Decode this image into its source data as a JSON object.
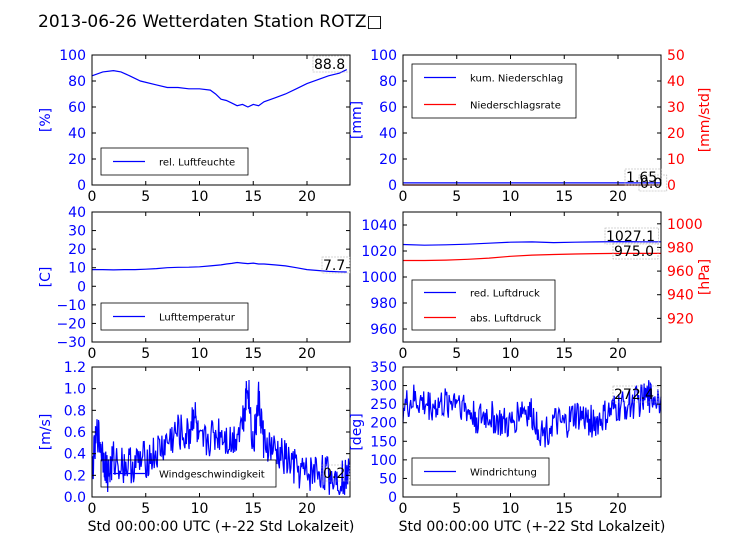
{
  "title": "2013-06-26 Wetterdaten Station ROTZ□",
  "colors": {
    "left": "#0000ff",
    "right": "#ff0000",
    "axis": "#000000"
  },
  "chart_data": [
    {
      "type": "line",
      "xlabel": "",
      "ylabel": "[%]",
      "xlim": [
        0,
        24
      ],
      "ylim": [
        0,
        100
      ],
      "xticks": [
        "0",
        "5",
        "10",
        "15",
        "20"
      ],
      "yticks": [
        "0",
        "20",
        "40",
        "60",
        "80",
        "100"
      ],
      "legend": {
        "placement": "lower-left",
        "entries": [
          "rel. Luftfeuchte"
        ]
      },
      "annotations": [
        "88.8"
      ],
      "series": [
        {
          "name": "rel. Luftfeuchte",
          "axis": "left",
          "color": "#0000ff",
          "x": [
            0,
            1,
            2,
            2.7,
            3.5,
            4.5,
            6,
            7,
            8,
            9,
            10,
            11,
            11.5,
            12,
            12.5,
            13,
            13.5,
            14,
            14.5,
            15,
            15.5,
            16,
            17,
            18,
            19,
            20,
            21,
            22,
            23,
            23.7
          ],
          "y": [
            84,
            87,
            88,
            87,
            84,
            80,
            77,
            75,
            75,
            74,
            74,
            73,
            70,
            66,
            65,
            63,
            61,
            62,
            60,
            62,
            61,
            64,
            67,
            70,
            74,
            78,
            81,
            84,
            86,
            88.8
          ]
        }
      ]
    },
    {
      "type": "line",
      "xlabel": "",
      "ylabel": "[mm]",
      "ylabel_right": "[mm/std]",
      "xlim": [
        0,
        24
      ],
      "ylim": [
        0,
        100
      ],
      "ylim_right": [
        0,
        50
      ],
      "xticks": [
        "0",
        "5",
        "10",
        "15",
        "20"
      ],
      "yticks": [
        "0",
        "20",
        "40",
        "60",
        "80",
        "100"
      ],
      "yticks_right": [
        "0",
        "10",
        "20",
        "30",
        "40",
        "50"
      ],
      "legend": {
        "placement": "upper-left",
        "entries": [
          "kum. Niederschlag",
          "Niederschlagsrate"
        ]
      },
      "annotations": [
        "1.65",
        "0.0"
      ],
      "series": [
        {
          "name": "kum. Niederschlag",
          "axis": "left",
          "color": "#0000ff",
          "x": [
            0,
            24
          ],
          "y": [
            1.65,
            1.65
          ]
        },
        {
          "name": "Niederschlagsrate",
          "axis": "right",
          "color": "#ff0000",
          "x": [
            0,
            24
          ],
          "y": [
            0,
            0
          ]
        }
      ]
    },
    {
      "type": "line",
      "xlabel": "",
      "ylabel": "[C]",
      "xlim": [
        0,
        24
      ],
      "ylim": [
        -30,
        40
      ],
      "xticks": [
        "0",
        "5",
        "10",
        "15",
        "20"
      ],
      "yticks": [
        "−30",
        "−20",
        "−10",
        "0",
        "10",
        "20",
        "30",
        "40"
      ],
      "legend": {
        "placement": "lower-left",
        "entries": [
          "Lufttemperatur"
        ]
      },
      "annotations": [
        "7.7"
      ],
      "series": [
        {
          "name": "Lufttemperatur",
          "axis": "left",
          "color": "#0000ff",
          "x": [
            0,
            1,
            2,
            3,
            4,
            5,
            6,
            7,
            8,
            9,
            10,
            11,
            12,
            12.5,
            13,
            13.5,
            14,
            14.5,
            15,
            15.5,
            16,
            17,
            18,
            19,
            20,
            21,
            22,
            23,
            23.7
          ],
          "y": [
            9,
            9,
            8.8,
            9,
            9,
            9.2,
            9.5,
            10,
            10.2,
            10.3,
            10.5,
            11,
            11.5,
            12,
            12.3,
            12.8,
            12.5,
            12.2,
            12.5,
            12,
            12,
            11.5,
            11,
            10,
            9,
            8.5,
            8,
            7.8,
            7.7
          ]
        }
      ]
    },
    {
      "type": "line",
      "xlabel": "",
      "ylabel": "",
      "ylabel_right": "[hPa]",
      "xlim": [
        0,
        24
      ],
      "ylim": [
        950,
        1050
      ],
      "ylim_right": [
        900,
        1010
      ],
      "xticks": [
        "0",
        "5",
        "10",
        "15",
        "20"
      ],
      "yticks": [
        "960",
        "980",
        "1000",
        "1020",
        "1040"
      ],
      "yticks_right": [
        "920",
        "940",
        "960",
        "980",
        "1000"
      ],
      "legend": {
        "placement": "lower-left",
        "entries": [
          "red. Luftdruck",
          "abs. Luftdruck"
        ]
      },
      "annotations": [
        "1027.1",
        "975.0"
      ],
      "series": [
        {
          "name": "red. Luftdruck",
          "axis": "left",
          "color": "#0000ff",
          "x": [
            0,
            2,
            4,
            6,
            8,
            10,
            12,
            14,
            16,
            18,
            20,
            22,
            24
          ],
          "y": [
            1025,
            1024.5,
            1024.8,
            1025.2,
            1026,
            1026.8,
            1027,
            1026.5,
            1026.8,
            1027,
            1027.2,
            1027.1,
            1027.1
          ]
        },
        {
          "name": "abs. Luftdruck",
          "axis": "right",
          "color": "#ff0000",
          "x": [
            0,
            2,
            4,
            6,
            8,
            10,
            12,
            14,
            16,
            18,
            20,
            22,
            24
          ],
          "y": [
            969,
            969,
            969.3,
            970,
            971,
            972.5,
            973.5,
            974,
            974.5,
            974.8,
            975,
            975,
            975
          ]
        }
      ]
    },
    {
      "type": "line",
      "xlabel": "Std 00:00:00 UTC (+-22 Std Lokalzeit)",
      "ylabel": "[m/s]",
      "xlim": [
        0,
        24
      ],
      "ylim": [
        0,
        1.2
      ],
      "xticks": [
        "0",
        "5",
        "10",
        "15",
        "20"
      ],
      "yticks": [
        "0.0",
        "0.2",
        "0.4",
        "0.6",
        "0.8",
        "1.0",
        "1.2"
      ],
      "legend": {
        "placement": "lower-left",
        "entries": [
          "Windgeschwindigkeit"
        ]
      },
      "annotations": [
        "0.2"
      ],
      "series": [
        {
          "name": "Windgeschwindigkeit",
          "axis": "left",
          "color": "#0000ff",
          "x": [
            0,
            0.5,
            1,
            1.5,
            2,
            3,
            4,
            5,
            6,
            7,
            8,
            9,
            9.5,
            10,
            11,
            12,
            13,
            14,
            14.5,
            15,
            15.5,
            16,
            17,
            18,
            19,
            20,
            21,
            22,
            23,
            24
          ],
          "y": [
            0.25,
            0.6,
            0.4,
            0.2,
            0.35,
            0.3,
            0.3,
            0.35,
            0.4,
            0.5,
            0.6,
            0.55,
            0.8,
            0.45,
            0.55,
            0.6,
            0.5,
            0.7,
            1.05,
            0.45,
            0.9,
            0.5,
            0.4,
            0.35,
            0.25,
            0.2,
            0.25,
            0.2,
            0.18,
            0.2
          ]
        }
      ]
    },
    {
      "type": "line",
      "xlabel": "Std 00:00:00 UTC (+-22 Std Lokalzeit)",
      "ylabel": "[deg]",
      "xlim": [
        0,
        24
      ],
      "ylim": [
        0,
        350
      ],
      "xticks": [
        "0",
        "5",
        "10",
        "15",
        "20"
      ],
      "yticks": [
        "0",
        "50",
        "100",
        "150",
        "200",
        "250",
        "300",
        "350"
      ],
      "legend": {
        "placement": "lower-left",
        "entries": [
          "Windrichtung"
        ]
      },
      "annotations": [
        "272.4"
      ],
      "series": [
        {
          "name": "Windrichtung",
          "axis": "left",
          "color": "#0000ff",
          "x": [
            0,
            1,
            2,
            3,
            4,
            5,
            6,
            7,
            8,
            9,
            10,
            11,
            12,
            13,
            14,
            15,
            16,
            17,
            18,
            19,
            20,
            21,
            22,
            23,
            24
          ],
          "y": [
            240,
            260,
            250,
            245,
            250,
            270,
            230,
            210,
            220,
            200,
            190,
            240,
            220,
            170,
            200,
            190,
            220,
            210,
            200,
            220,
            240,
            250,
            260,
            272,
            270
          ]
        }
      ]
    }
  ]
}
